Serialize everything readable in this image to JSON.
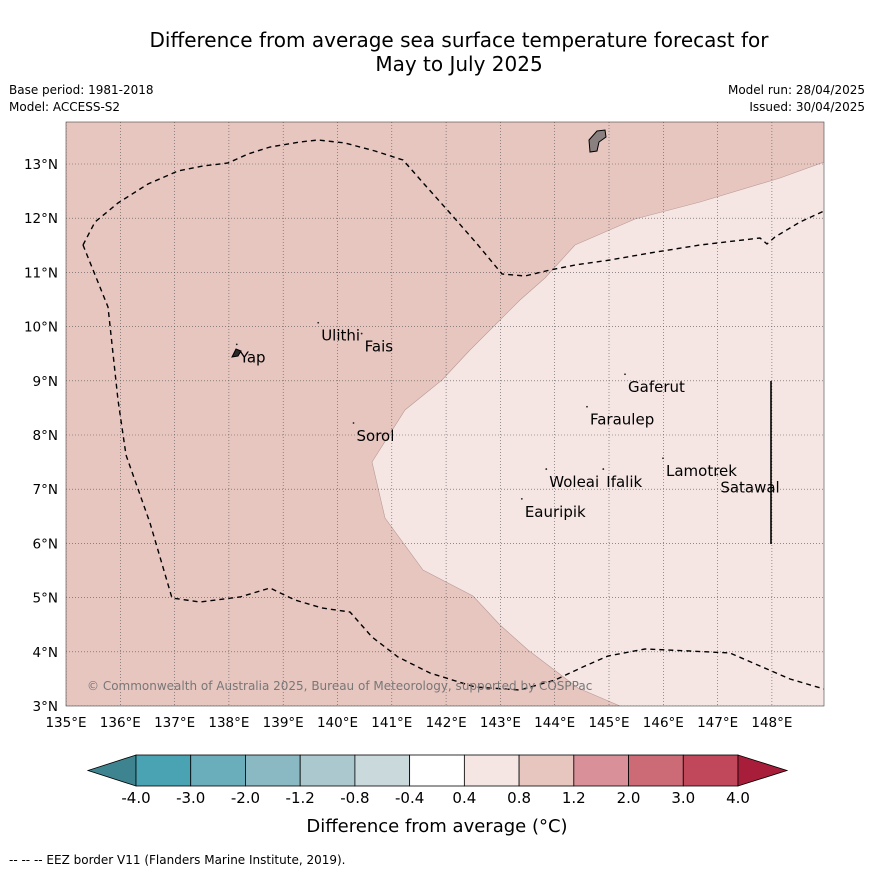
{
  "title_line1": "Difference from average sea surface temperature forecast for",
  "title_line2": "May to July 2025",
  "meta_left": [
    "Base period: 1981-2018",
    "Model: ACCESS-S2"
  ],
  "meta_right": [
    "Model run: 28/04/2025",
    "Issued: 30/04/2025"
  ],
  "map": {
    "lon_range": [
      135,
      149
    ],
    "lat_range": [
      3,
      13.8
    ],
    "lon_ticks": [
      "135°E",
      "136°E",
      "137°E",
      "138°E",
      "139°E",
      "140°E",
      "141°E",
      "142°E",
      "143°E",
      "144°E",
      "145°E",
      "146°E",
      "147°E",
      "148°E"
    ],
    "lat_ticks": [
      "3°N",
      "4°N",
      "5°N",
      "6°N",
      "7°N",
      "8°N",
      "9°N",
      "10°N",
      "11°N",
      "12°N",
      "13°N"
    ],
    "copyright": "© Commonwealth of Australia 2025, Bureau of Meteorology, supported by COSPPac",
    "places": [
      {
        "name": "Yap",
        "lon": 138.2,
        "lat": 9.45
      },
      {
        "name": "Ulithi",
        "lon": 139.7,
        "lat": 9.85
      },
      {
        "name": "Fais",
        "lon": 140.5,
        "lat": 9.65
      },
      {
        "name": "Sorol",
        "lon": 140.35,
        "lat": 8.0
      },
      {
        "name": "Gaferut",
        "lon": 145.35,
        "lat": 8.9
      },
      {
        "name": "Faraulep",
        "lon": 144.65,
        "lat": 8.3
      },
      {
        "name": "Woleai",
        "lon": 143.9,
        "lat": 7.15
      },
      {
        "name": "Ifalik",
        "lon": 144.95,
        "lat": 7.15
      },
      {
        "name": "Lamotrek",
        "lon": 146.05,
        "lat": 7.35
      },
      {
        "name": "Satawal",
        "lon": 147.05,
        "lat": 7.05
      },
      {
        "name": "Eauripik",
        "lon": 143.45,
        "lat": 6.6
      }
    ],
    "colors": {
      "warm": "#e8c6c0",
      "light": "#f5e6e4",
      "island": "#2a2a2a"
    }
  },
  "colorbar": {
    "labels": [
      "-4.0",
      "-3.0",
      "-2.0",
      "-1.2",
      "-0.8",
      "-0.4",
      "0.4",
      "0.8",
      "1.2",
      "2.0",
      "3.0",
      "4.0"
    ],
    "colors": [
      "#4aa3b3",
      "#6aaebc",
      "#8ab9c4",
      "#aac8ce",
      "#c9d9dc",
      "#ffffff",
      "#f5e6e4",
      "#e8c6c0",
      "#d99098",
      "#cc6a76",
      "#c0485a"
    ],
    "under_color": "#3e8490",
    "over_color": "#a81e3a",
    "label": "Difference from average (°C)"
  },
  "footer": "-- -- -- EEZ border V11 (Flanders Marine Institute, 2019)."
}
